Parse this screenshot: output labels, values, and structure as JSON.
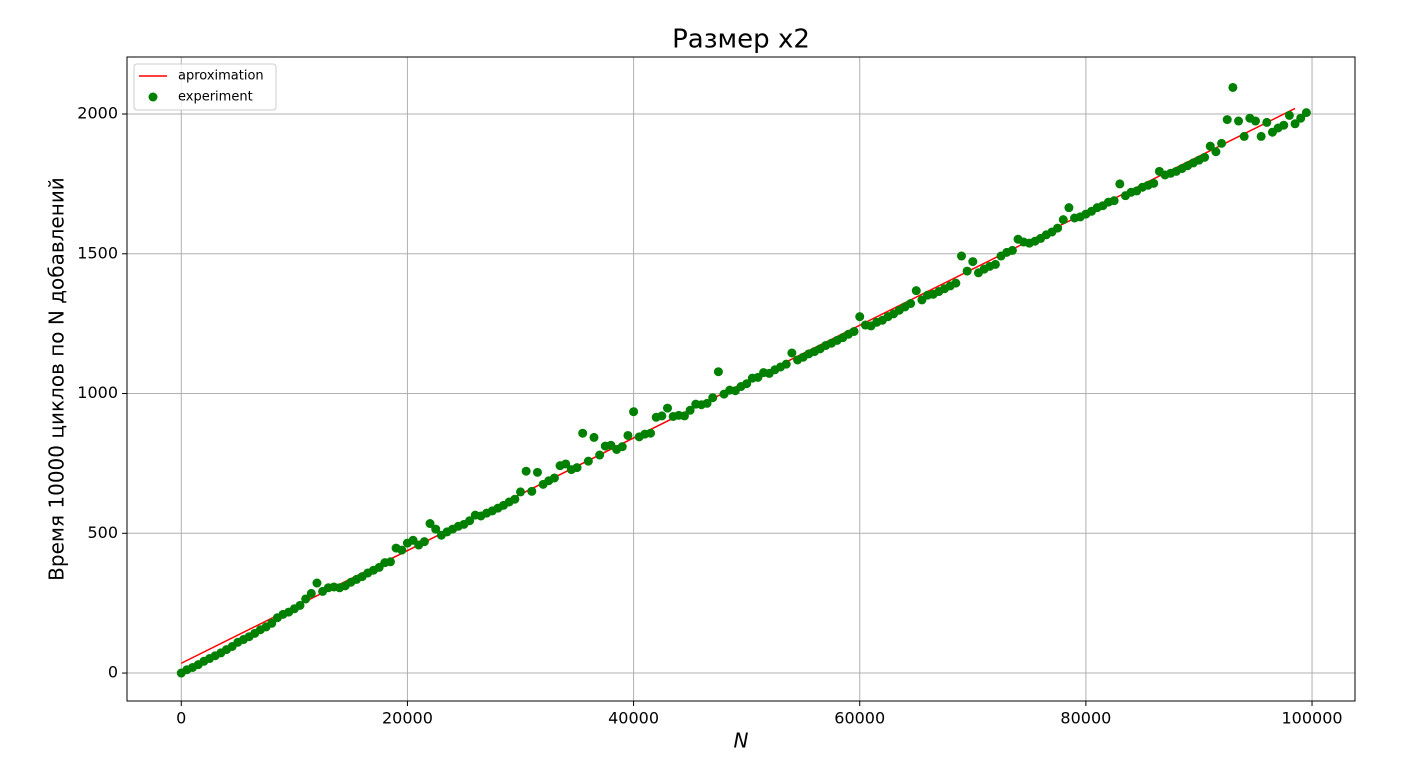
{
  "chart_data": {
    "type": "combo",
    "title": "Размер x2",
    "x_label": "N",
    "y_label": "Время 10000 циклов по N добавлений",
    "xlim": [
      -4800,
      103800
    ],
    "ylim": [
      -100,
      2204
    ],
    "xticks": [
      0,
      20000,
      40000,
      60000,
      80000,
      100000
    ],
    "yticks": [
      0,
      500,
      1000,
      1500,
      2000
    ],
    "grid": true,
    "legend": "upper-left",
    "series": [
      {
        "name": "aproximation",
        "type": "line",
        "color": "#ff0000",
        "x": [
          0,
          98500
        ],
        "values": [
          35,
          2020
        ]
      },
      {
        "name": "experiment",
        "type": "scatter",
        "color": "#008000",
        "x": [
          0,
          500,
          1000,
          1500,
          2000,
          2500,
          3000,
          3500,
          4000,
          4500,
          5000,
          5500,
          6000,
          6500,
          7000,
          7500,
          8000,
          8500,
          9000,
          9500,
          10000,
          10500,
          11000,
          11500,
          12000,
          12500,
          13000,
          13500,
          14000,
          14500,
          15000,
          15500,
          16000,
          16500,
          17000,
          17500,
          18000,
          18500,
          19000,
          19500,
          20000,
          20500,
          21000,
          21500,
          22000,
          22500,
          23000,
          23500,
          24000,
          24500,
          25000,
          25500,
          26000,
          26500,
          27000,
          27500,
          28000,
          28500,
          29000,
          29500,
          30000,
          30500,
          31000,
          31500,
          32000,
          32500,
          33000,
          33500,
          34000,
          34500,
          35000,
          35500,
          36000,
          36500,
          37000,
          37500,
          38000,
          38500,
          39000,
          39500,
          40000,
          40500,
          41000,
          41500,
          42000,
          42500,
          43000,
          43500,
          44000,
          44500,
          45000,
          45500,
          46000,
          46500,
          47000,
          47500,
          48000,
          48500,
          49000,
          49500,
          50000,
          50500,
          51000,
          51500,
          52000,
          52500,
          53000,
          53500,
          54000,
          54500,
          55000,
          55500,
          56000,
          56500,
          57000,
          57500,
          58000,
          58500,
          59000,
          59500,
          60000,
          60500,
          61000,
          61500,
          62000,
          62500,
          63000,
          63500,
          64000,
          64500,
          65000,
          65500,
          66000,
          66500,
          67000,
          67500,
          68000,
          68500,
          69000,
          69500,
          70000,
          70500,
          71000,
          71500,
          72000,
          72500,
          73000,
          73500,
          74000,
          74500,
          75000,
          75500,
          76000,
          76500,
          77000,
          77500,
          78000,
          78500,
          79000,
          79500,
          80000,
          80500,
          81000,
          81500,
          82000,
          82500,
          83000,
          83500,
          84000,
          84500,
          85000,
          85500,
          86000,
          86500,
          87000,
          87500,
          88000,
          88500,
          89000,
          89500,
          90000,
          90500,
          91000,
          91500,
          92000,
          92500,
          93000,
          93500,
          94000,
          94500,
          95000,
          95500,
          96000,
          96500,
          97000,
          97500,
          98000,
          98500,
          99000,
          99500
        ],
        "values": [
          0,
          12,
          20,
          30,
          42,
          52,
          62,
          72,
          84,
          95,
          110,
          120,
          130,
          142,
          155,
          165,
          178,
          198,
          210,
          218,
          230,
          242,
          265,
          285,
          322,
          292,
          305,
          308,
          305,
          312,
          325,
          335,
          345,
          358,
          368,
          378,
          395,
          398,
          447,
          440,
          465,
          475,
          458,
          470,
          535,
          515,
          493,
          505,
          515,
          525,
          532,
          545,
          565,
          562,
          572,
          580,
          590,
          600,
          612,
          622,
          648,
          722,
          650,
          718,
          675,
          688,
          698,
          742,
          748,
          728,
          735,
          858,
          758,
          843,
          780,
          812,
          815,
          800,
          810,
          850,
          935,
          845,
          855,
          858,
          915,
          920,
          948,
          918,
          922,
          920,
          940,
          962,
          960,
          965,
          985,
          1078,
          998,
          1012,
          1010,
          1025,
          1035,
          1055,
          1058,
          1075,
          1072,
          1085,
          1095,
          1105,
          1145,
          1120,
          1130,
          1142,
          1150,
          1160,
          1172,
          1180,
          1190,
          1200,
          1212,
          1222,
          1275,
          1245,
          1242,
          1255,
          1262,
          1275,
          1285,
          1298,
          1310,
          1322,
          1368,
          1335,
          1352,
          1355,
          1365,
          1375,
          1385,
          1395,
          1492,
          1438,
          1472,
          1432,
          1445,
          1455,
          1462,
          1492,
          1505,
          1512,
          1552,
          1542,
          1538,
          1545,
          1555,
          1568,
          1578,
          1592,
          1622,
          1665,
          1628,
          1632,
          1642,
          1652,
          1665,
          1672,
          1685,
          1690,
          1750,
          1708,
          1720,
          1725,
          1738,
          1745,
          1752,
          1795,
          1782,
          1788,
          1795,
          1805,
          1815,
          1825,
          1835,
          1845,
          1885,
          1865,
          1895,
          1980,
          2095,
          1975,
          1920,
          1985,
          1975,
          1920,
          1970,
          1935,
          1950,
          1960,
          1995,
          1965,
          1985,
          2005
        ]
      }
    ]
  }
}
